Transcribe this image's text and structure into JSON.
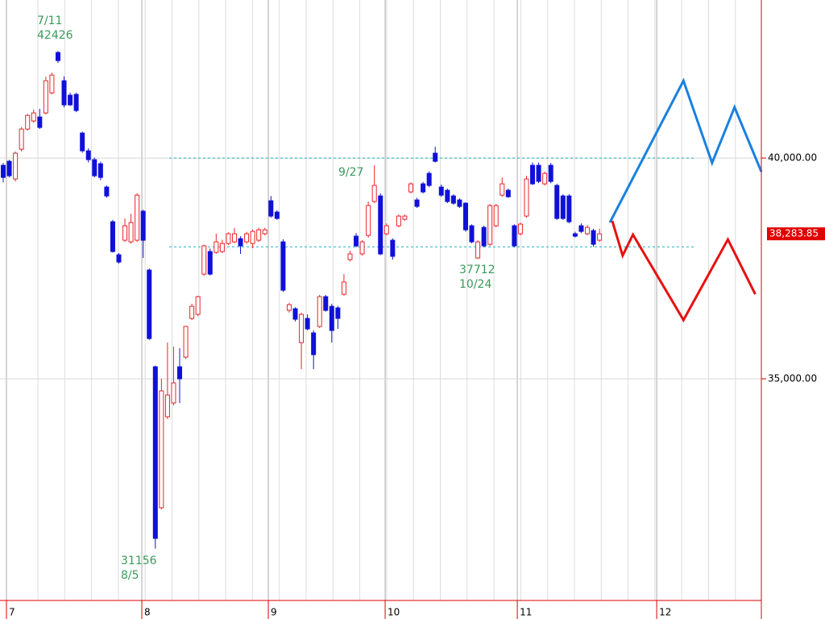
{
  "chart_data": {
    "type": "candlestick",
    "xlim": [
      -0.53,
      124.6
    ],
    "xticks": [
      {
        "value": 0.53,
        "label": "7"
      },
      {
        "value": 22.78,
        "label": "8"
      },
      {
        "value": 43.57,
        "label": "9"
      },
      {
        "value": 62.77,
        "label": "10"
      },
      {
        "value": 84.49,
        "label": "11"
      },
      {
        "value": 107.4,
        "label": "12"
      }
    ],
    "ylim": [
      29980,
      43580
    ],
    "yticks": [
      {
        "value": 40000,
        "label": "40,000.00"
      },
      {
        "value": 35000,
        "label": "35,000.00"
      }
    ],
    "grid": true,
    "up_color": "#e8252a",
    "down_color": "#1010d8",
    "open": [
      39836,
      39927,
      39526,
      40201,
      40657,
      40840,
      40931,
      41022,
      41478,
      42391,
      41752,
      41424,
      41442,
      40566,
      40164,
      39964,
      39872,
      39343,
      38558,
      37810,
      38139,
      38102,
      38139,
      38796,
      37463,
      35273,
      32080,
      34142,
      34452,
      35273,
      35492,
      36368,
      36460,
      37372,
      37883,
      37865,
      37883,
      38066,
      38102,
      38175,
      38102,
      38066,
      38139,
      38285,
      39033,
      38777,
      38102,
      36551,
      36588,
      35821,
      36368,
      36040,
      36186,
      36861,
      36642,
      36606,
      36916,
      37701,
      38231,
      37829,
      38248,
      39015,
      39142,
      38285,
      38139,
      38467,
      38613,
      39234,
      39051,
      39416,
      39653,
      40110,
      39343,
      39270,
      39142,
      39051,
      38978,
      38467,
      37737,
      38430,
      38047,
      38467,
      39160,
      39270,
      38467,
      38285,
      38686,
      39836,
      39836,
      39416,
      39836,
      39380,
      39142,
      39142,
      38285,
      38467,
      38285,
      38357,
      38139
    ],
    "high": [
      39890,
      39960,
      40150,
      40700,
      41000,
      41100,
      41113,
      41843,
      41935,
      42426,
      41850,
      41480,
      41480,
      40600,
      40220,
      40010,
      39920,
      39380,
      38600,
      37850,
      38632,
      38741,
      39200,
      38830,
      37500,
      35300,
      35000,
      35821,
      35730,
      35693,
      36200,
      36700,
      36880,
      38040,
      37950,
      38285,
      38150,
      38320,
      38412,
      38230,
      38330,
      38380,
      38420,
      38420,
      39140,
      38820,
      38160,
      36720,
      36620,
      36500,
      36460,
      36100,
      36900,
      36900,
      36700,
      36650,
      37372,
      37900,
      38300,
      38140,
      39015,
      39836,
      39200,
      38520,
      38180,
      38720,
      38720,
      39450,
      39100,
      39460,
      39700,
      40256,
      39400,
      39310,
      39180,
      39090,
      39000,
      38500,
      38140,
      38470,
      38960,
      38960,
      39560,
      39310,
      38500,
      38540,
      39600,
      39900,
      39900,
      39690,
      39890,
      39420,
      39180,
      39180,
      38330,
      38520,
      38480,
      38400,
      38400
    ],
    "low": [
      39450,
      39560,
      39470,
      40150,
      40620,
      40800,
      40660,
      40990,
      41440,
      42154,
      41150,
      41180,
      41040,
      40120,
      39900,
      39560,
      39500,
      39100,
      37860,
      37610,
      38100,
      38060,
      38100,
      37737,
      35880,
      31156,
      32043,
      34087,
      34400,
      34452,
      35450,
      36330,
      36420,
      37330,
      37340,
      37830,
      37850,
      38030,
      38070,
      37829,
      38060,
      37956,
      38100,
      38250,
      38650,
      38600,
      36970,
      36500,
      36300,
      35219,
      36100,
      35219,
      36150,
      36520,
      35821,
      36131,
      36880,
      37660,
      37980,
      37790,
      38200,
      38980,
      37800,
      38250,
      37700,
      38430,
      38580,
      39200,
      38870,
      39200,
      39340,
      39900,
      39120,
      38980,
      38940,
      38870,
      38330,
      38070,
      37712,
      37980,
      38010,
      38430,
      39120,
      39100,
      37980,
      38250,
      38650,
      39390,
      39430,
      39380,
      39430,
      38600,
      38600,
      38520,
      38200,
      38300,
      38250,
      37990,
      38100
    ],
    "close": [
      39562,
      39599,
      40110,
      40657,
      40967,
      41022,
      40694,
      41752,
      41880,
      42208,
      41205,
      41205,
      41077,
      40164,
      39964,
      39599,
      39562,
      39142,
      37883,
      37646,
      38467,
      38540,
      39160,
      38139,
      35912,
      31386,
      34726,
      34634,
      34908,
      35000,
      36186,
      36642,
      36861,
      38011,
      37372,
      38102,
      38066,
      38285,
      38285,
      38011,
      38285,
      38339,
      38375,
      38375,
      38686,
      38632,
      37007,
      36679,
      36350,
      36460,
      36131,
      35547,
      36861,
      36551,
      36095,
      36368,
      37190,
      37829,
      38011,
      38102,
      38924,
      39380,
      37829,
      38467,
      37774,
      38686,
      38686,
      39416,
      38905,
      39234,
      39380,
      39927,
      39160,
      39015,
      38978,
      38905,
      38375,
      38102,
      38102,
      38011,
      38924,
      38924,
      39416,
      39124,
      38011,
      38504,
      39526,
      39416,
      39471,
      39653,
      39471,
      38632,
      38632,
      38558,
      38231,
      38339,
      38431,
      38047,
      38283.85
    ],
    "last_price": {
      "value": 38283.85,
      "label": "38,283.85"
    },
    "support_lines": [
      40000,
      37990
    ],
    "support_color": "#20b0c0",
    "forecasts": [
      {
        "color": "#1a80e0",
        "x": [
          99.7,
          111.8,
          116.5,
          120.2,
          124.6
        ],
        "values": [
          38540,
          41752,
          39890,
          41150,
          39690
        ]
      },
      {
        "color": "#e81010",
        "x": [
          100.1,
          101.8,
          103.5,
          111.8,
          119.1,
          123.6
        ],
        "values": [
          38577,
          37792,
          38266,
          36332,
          38157,
          36916
        ]
      }
    ],
    "annotations": [
      {
        "date": "7/11",
        "value": 42426
      },
      {
        "value": 31156,
        "date": "8/5"
      },
      {
        "date": "9/27"
      },
      {
        "value": 37712,
        "date": "10/24"
      }
    ]
  }
}
